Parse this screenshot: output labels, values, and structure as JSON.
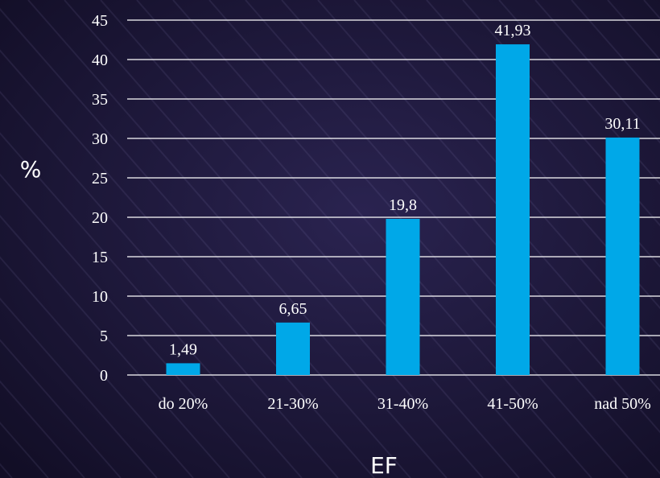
{
  "colors": {
    "background": "#16112e",
    "bar": "#00a8e8",
    "gridline": "#ffffff",
    "text": "#ffffff"
  },
  "chart_data": {
    "type": "bar",
    "title": "",
    "xlabel": "EF",
    "ylabel": "%",
    "categories": [
      "do 20%",
      "21-30%",
      "31-40%",
      "41-50%",
      "nad 50%"
    ],
    "values": [
      1.49,
      6.65,
      19.8,
      41.93,
      30.11
    ],
    "value_labels": [
      "1,49",
      "6,65",
      "19,8",
      "41,93",
      "30,11"
    ],
    "ylim": [
      0,
      45
    ],
    "yticks": [
      0,
      5,
      10,
      15,
      20,
      25,
      30,
      35,
      40,
      45
    ],
    "grid": true,
    "legend": "none"
  }
}
